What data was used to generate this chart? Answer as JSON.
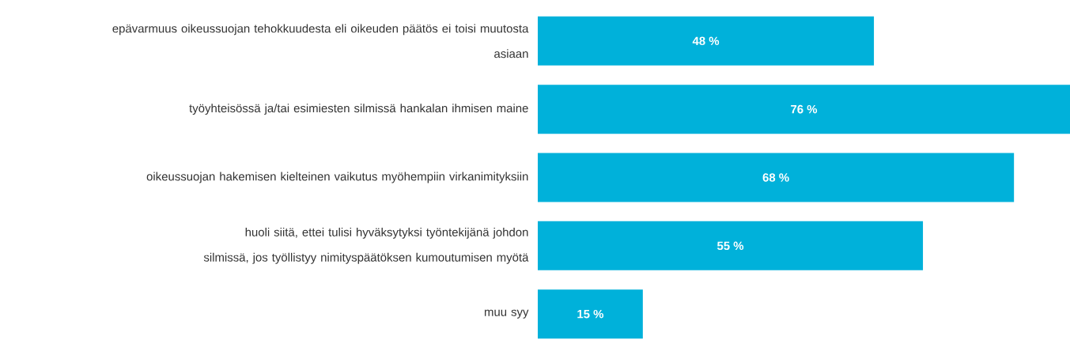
{
  "chart_data": {
    "type": "bar",
    "orientation": "horizontal",
    "categories": [
      "epävarmuus oikeussuojan tehokkuudesta eli oikeuden päätös ei toisi muutosta asiaan",
      "työyhteisössä ja/tai esimiesten silmissä hankalan ihmisen maine",
      "oikeussuojan hakemisen kielteinen vaikutus myöhempiin virkanimityksiin",
      "huoli siitä, ettei tulisi hyväksytyksi työntekijänä johdon silmissä, jos työllistyy nimityspäätöksen kumoutumisen myötä",
      "muu syy"
    ],
    "values": [
      48,
      76,
      68,
      55,
      15
    ],
    "value_labels": [
      "48 %",
      "76 %",
      "68 %",
      "55 %",
      "15 %"
    ],
    "color": "#00b1da"
  }
}
